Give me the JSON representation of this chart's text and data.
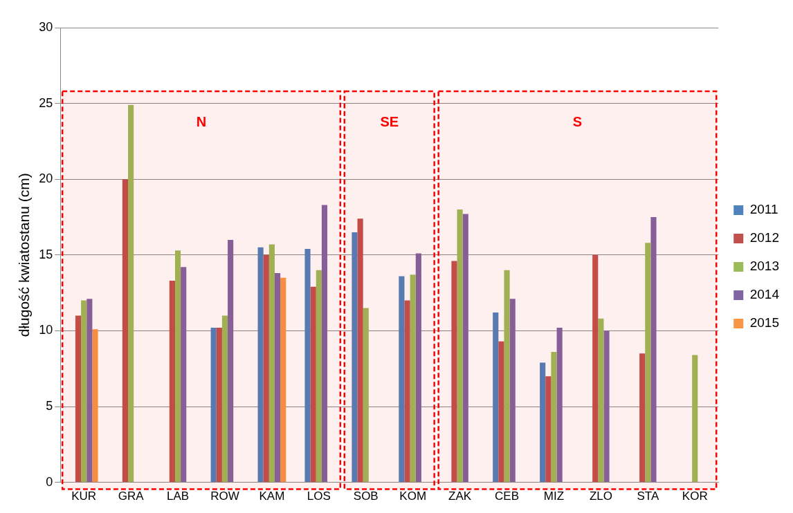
{
  "chart_data": {
    "type": "bar",
    "ylabel": "długość kwiatostanu (cm)",
    "categories": [
      "KUR",
      "GRA",
      "LAB",
      "ROW",
      "KAM",
      "LOS",
      "SOB",
      "KOM",
      "ZAK",
      "CEB",
      "MIZ",
      "ZLO",
      "STA",
      "KOR"
    ],
    "series": [
      {
        "name": "2011",
        "color": "#4f81bd",
        "values": [
          null,
          null,
          null,
          10.2,
          15.5,
          15.4,
          16.5,
          13.6,
          null,
          11.2,
          7.9,
          null,
          null,
          null
        ]
      },
      {
        "name": "2012",
        "color": "#c0504d",
        "values": [
          11.0,
          20.0,
          13.3,
          10.2,
          15.0,
          12.9,
          17.4,
          12.0,
          14.6,
          9.3,
          7.0,
          15.0,
          8.5,
          null
        ]
      },
      {
        "name": "2013",
        "color": "#9bbb59",
        "values": [
          12.0,
          24.9,
          15.3,
          11.0,
          15.7,
          14.0,
          11.5,
          13.7,
          18.0,
          14.0,
          8.6,
          10.8,
          15.8,
          8.4
        ]
      },
      {
        "name": "2014",
        "color": "#8064a2",
        "values": [
          12.1,
          null,
          14.2,
          16.0,
          13.8,
          18.3,
          null,
          15.1,
          17.7,
          12.1,
          10.2,
          10.0,
          17.5,
          null
        ]
      },
      {
        "name": "2015",
        "color": "#f79646",
        "values": [
          10.1,
          null,
          null,
          null,
          13.5,
          null,
          null,
          null,
          null,
          null,
          null,
          null,
          null,
          null
        ]
      }
    ],
    "ylim": [
      0,
      30
    ],
    "yticks": [
      0,
      5,
      10,
      15,
      20,
      25,
      30
    ],
    "grid": "y",
    "legend": "right",
    "bands": [
      {
        "axis": "x",
        "from": "KUR",
        "to": "LOS",
        "label": "N",
        "color": "#ff0000"
      },
      {
        "axis": "x",
        "from": "SOB",
        "to": "KOM",
        "label": "SE",
        "color": "#ff0000"
      },
      {
        "axis": "x",
        "from": "ZAK",
        "to": "KOR",
        "label": "S",
        "color": "#ff0000"
      }
    ]
  }
}
